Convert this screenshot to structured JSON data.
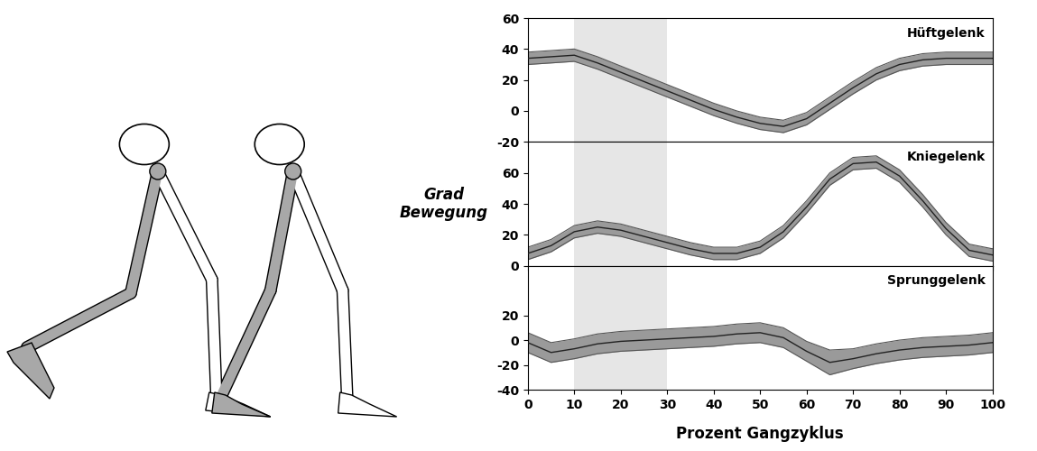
{
  "chart_data": [
    {
      "type": "line",
      "title": "Hüftgelenk",
      "x": [
        0,
        5,
        10,
        15,
        20,
        25,
        30,
        35,
        40,
        45,
        50,
        55,
        60,
        65,
        70,
        75,
        80,
        85,
        90,
        95,
        100
      ],
      "series": [
        {
          "color": "#222222",
          "values": [
            34,
            35,
            36,
            31,
            25,
            19,
            13,
            7,
            1,
            -4,
            -8,
            -10,
            -5,
            5,
            15,
            24,
            30,
            33,
            34,
            34,
            34
          ],
          "lower": [
            30,
            31,
            32,
            27,
            21,
            15,
            9,
            3,
            -3,
            -8,
            -12,
            -14,
            -9,
            1,
            11,
            20,
            26,
            29,
            30,
            30,
            30
          ],
          "upper": [
            38,
            39,
            40,
            35,
            29,
            23,
            17,
            11,
            5,
            0,
            -4,
            -6,
            -1,
            9,
            19,
            28,
            34,
            37,
            38,
            38,
            38
          ]
        }
      ],
      "highlight": [
        10,
        30
      ],
      "xlim": [
        0,
        100
      ],
      "xticks": [
        0,
        10,
        20,
        30,
        40,
        50,
        60,
        70,
        80,
        90,
        100
      ],
      "ylim": [
        -20,
        60
      ],
      "yticks": [
        -20,
        0,
        20,
        40,
        60
      ],
      "tick_labels": "y"
    },
    {
      "type": "line",
      "title": "Kniegelenk",
      "ylabel": "Grad\nBewegung",
      "x": [
        0,
        5,
        10,
        15,
        20,
        25,
        30,
        35,
        40,
        45,
        50,
        55,
        60,
        65,
        70,
        75,
        80,
        85,
        90,
        95,
        100
      ],
      "series": [
        {
          "color": "#222222",
          "values": [
            8,
            13,
            22,
            25,
            23,
            19,
            15,
            11,
            8,
            8,
            12,
            22,
            38,
            56,
            66,
            67,
            58,
            42,
            24,
            10,
            7
          ],
          "lower": [
            4,
            9,
            18,
            21,
            19,
            15,
            11,
            7,
            4,
            4,
            8,
            18,
            34,
            52,
            62,
            63,
            54,
            38,
            20,
            6,
            3
          ],
          "upper": [
            12,
            17,
            26,
            29,
            27,
            23,
            19,
            15,
            12,
            12,
            16,
            26,
            42,
            60,
            70,
            71,
            62,
            46,
            28,
            14,
            11
          ]
        }
      ],
      "highlight": [
        10,
        30
      ],
      "xlim": [
        0,
        100
      ],
      "xticks": [
        0,
        10,
        20,
        30,
        40,
        50,
        60,
        70,
        80,
        90,
        100
      ],
      "ylim": [
        0,
        80
      ],
      "yticks": [
        0,
        20,
        40,
        60
      ],
      "tick_labels": "y"
    },
    {
      "type": "line",
      "title": "Sprunggelenk",
      "xlabel": "Prozent Gangzyklus",
      "x": [
        0,
        5,
        10,
        15,
        20,
        25,
        30,
        35,
        40,
        45,
        50,
        55,
        60,
        65,
        70,
        75,
        80,
        85,
        90,
        95,
        100
      ],
      "series": [
        {
          "color": "#222222",
          "values": [
            -2,
            -10,
            -7,
            -3,
            -1,
            0,
            1,
            2,
            3,
            5,
            6,
            2,
            -9,
            -18,
            -15,
            -11,
            -8,
            -6,
            -5,
            -4,
            -2
          ],
          "lower": [
            -10,
            -18,
            -15,
            -11,
            -9,
            -8,
            -7,
            -6,
            -5,
            -3,
            -2,
            -6,
            -17,
            -28,
            -23,
            -19,
            -16,
            -14,
            -13,
            -12,
            -10
          ],
          "upper": [
            6,
            -2,
            1,
            5,
            7,
            8,
            9,
            10,
            11,
            13,
            14,
            10,
            -1,
            -8,
            -7,
            -3,
            0,
            2,
            3,
            4,
            6
          ]
        }
      ],
      "highlight": [
        10,
        30
      ],
      "xlim": [
        0,
        100
      ],
      "xticks": [
        0,
        10,
        20,
        30,
        40,
        50,
        60,
        70,
        80,
        90,
        100
      ],
      "ylim": [
        -40,
        60
      ],
      "yticks": [
        -40,
        -20,
        0,
        20
      ]
    }
  ]
}
